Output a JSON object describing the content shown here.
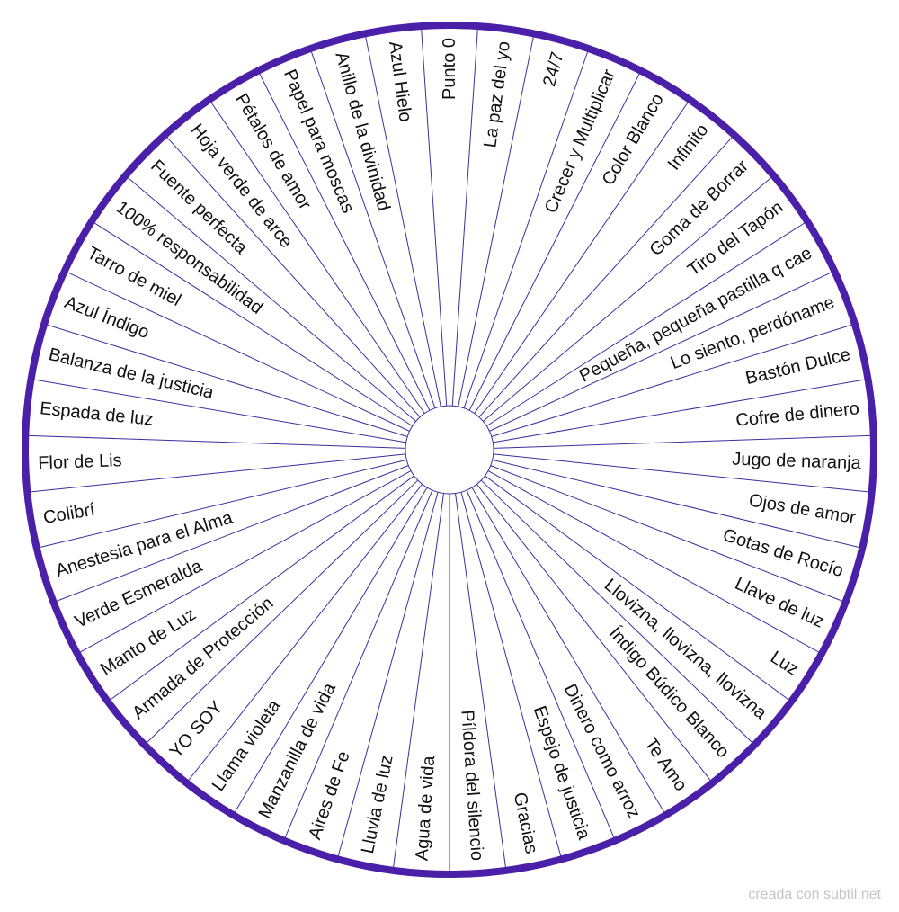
{
  "colors": {
    "ring": "#4a20a8",
    "divider": "#3a2fa0",
    "text": "#111111",
    "background": "#ffffff",
    "credit": "#c4c4c4"
  },
  "wheel": {
    "labels": [
      "Punto 0",
      "La paz del yo",
      "24/7",
      "Crecer y Multiplicar",
      "Color Blanco",
      "Infinito",
      "Goma de Borrar",
      "Tiro del Tapón",
      "Pequeña, pequeña pastilla q cae",
      "Lo siento, perdóname",
      "Bastón Dulce",
      "Cofre de dinero",
      "Jugo de naranja",
      "Ojos de amor",
      "Gotas de Rocío",
      "Llave de luz",
      "Luz",
      "Llovizna, llovizna, llovizna",
      "Índigo Búdico Blanco",
      "Te Amo",
      "Dinero como arroz",
      "Espejo de justicia",
      "Gracias",
      "Píldora del silencio",
      "Agua de vida",
      "Lluvia de luz",
      "Aires de Fe",
      "Manzanilla de vida",
      "Llama violeta",
      "YO SOY",
      "Armada de Protección",
      "Manto de Luz",
      "Verde Esmeralda",
      "Anestesia para el Alma",
      "Colibrí",
      "Flor de Lis",
      "Espada de luz",
      "Balanza de la justicia",
      "Azul Índigo",
      "Tarro de miel",
      "100% responsabilidad",
      "Fuente perfecta",
      "Hoja verde de arce",
      "Pétalos de amor",
      "Papel para moscas",
      "Anillo de la divinidad",
      "Azul Hielo"
    ]
  },
  "footer": {
    "credit": "creada con subtil.net"
  }
}
